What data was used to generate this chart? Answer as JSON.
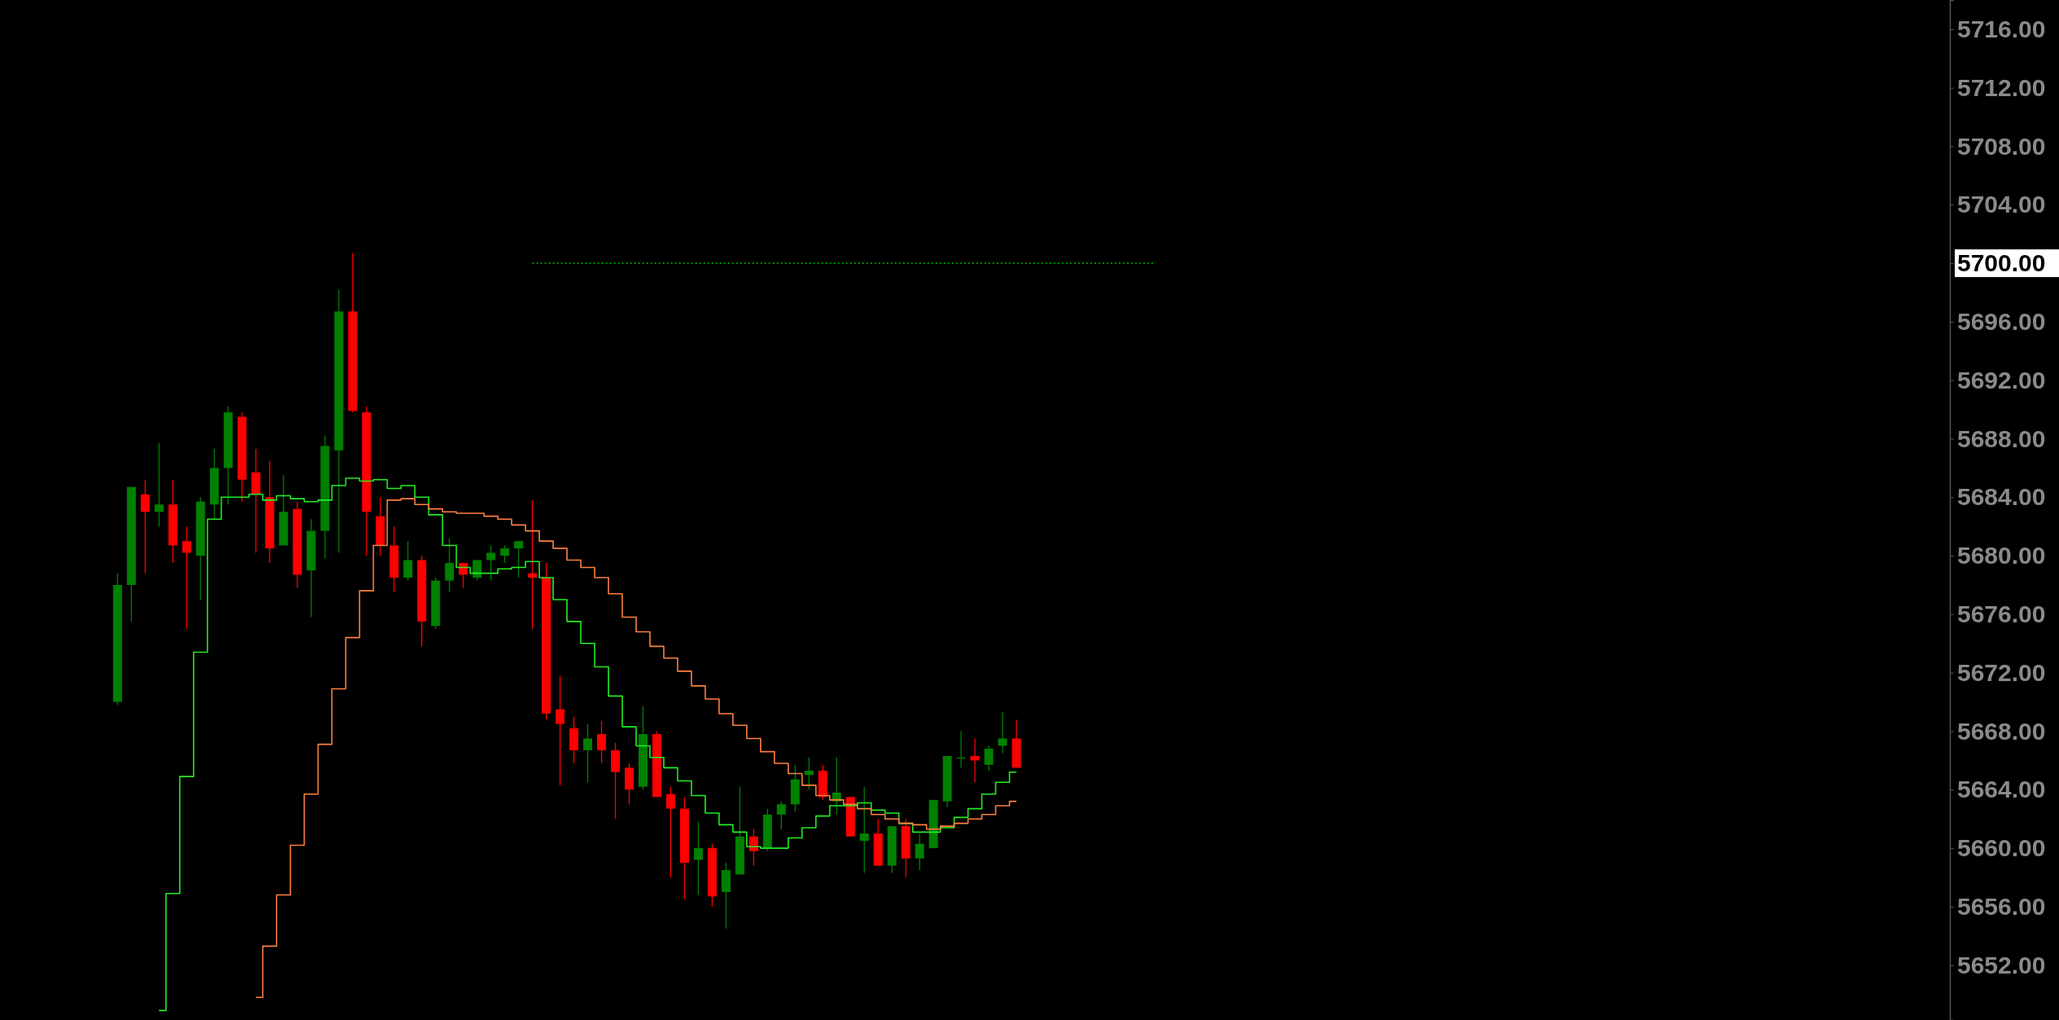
{
  "chart_data": {
    "type": "candlestick",
    "categories": [
      null,
      null,
      null,
      null,
      null,
      null,
      null,
      null,
      null,
      null,
      null,
      null,
      null,
      null,
      null,
      null,
      null,
      null,
      null,
      null,
      null,
      null,
      null,
      null,
      null,
      null,
      null,
      null,
      null,
      null,
      null,
      null,
      null,
      null,
      null,
      null,
      null,
      null,
      null,
      null,
      null,
      null,
      null,
      null,
      null,
      null,
      null,
      null,
      null,
      null,
      null,
      null,
      null,
      null,
      null,
      null,
      null,
      null,
      null,
      null,
      null,
      null,
      null,
      null,
      null,
      null,
      null,
      null,
      null,
      null,
      null,
      null,
      null,
      null,
      null,
      null,
      null,
      null,
      null,
      null,
      null,
      null,
      null,
      null,
      null,
      null,
      null,
      null,
      null,
      null,
      null,
      null,
      null,
      null,
      null,
      null,
      null,
      null,
      null,
      null,
      null,
      null,
      null,
      null,
      null,
      null,
      null,
      null,
      null,
      null,
      null,
      null,
      null,
      null,
      null,
      null,
      null,
      null,
      null,
      null,
      null,
      null,
      null,
      null,
      null,
      null,
      null,
      null,
      null,
      null,
      null,
      null,
      null,
      null,
      null,
      null,
      null,
      null,
      null,
      null,
      null
    ],
    "ohlc": [
      null,
      null,
      null,
      null,
      null,
      null,
      null,
      null,
      [
        5670.0,
        5678.8,
        5669.8,
        5678.0
      ],
      [
        5678.0,
        5684.7,
        5675.5,
        5684.7
      ],
      [
        5684.2,
        5685.2,
        5678.8,
        5683.0
      ],
      [
        5683.0,
        5687.7,
        5682.0,
        5683.5
      ],
      [
        5683.5,
        5685.2,
        5679.5,
        5680.7
      ],
      [
        5681.0,
        5682.0,
        5675.0,
        5680.2
      ],
      [
        5680.0,
        5684.0,
        5677.0,
        5683.7
      ],
      [
        5683.5,
        5687.3,
        5682.5,
        5686.0
      ],
      [
        5686.0,
        5690.2,
        5683.5,
        5689.8
      ],
      [
        5689.5,
        5689.8,
        5683.7,
        5685.2
      ],
      [
        5685.7,
        5687.3,
        5680.2,
        5684.2
      ],
      [
        5684.0,
        5686.5,
        5679.5,
        5680.5
      ],
      [
        5680.7,
        5685.5,
        5680.7,
        5683.0
      ],
      [
        5683.2,
        5683.7,
        5677.8,
        5678.7
      ],
      [
        5679.0,
        5682.5,
        5675.8,
        5681.7
      ],
      [
        5681.7,
        5688.2,
        5679.8,
        5687.5
      ],
      [
        5687.2,
        5698.2,
        5680.2,
        5696.7
      ],
      [
        5696.7,
        5700.7,
        5689.8,
        5689.9
      ],
      [
        5689.8,
        5690.2,
        5680.0,
        5683.0
      ],
      [
        5682.7,
        5684.0,
        5680.0,
        5680.7
      ],
      [
        5680.7,
        5682.0,
        5677.5,
        5678.5
      ],
      [
        5678.5,
        5681.0,
        5678.3,
        5679.7
      ],
      [
        5679.7,
        5680.0,
        5673.8,
        5675.5
      ],
      [
        5675.2,
        5678.5,
        5675.0,
        5678.3
      ],
      [
        5678.3,
        5681.2,
        5677.5,
        5679.5
      ],
      [
        5679.5,
        5679.5,
        5677.8,
        5678.7
      ],
      [
        5678.5,
        5679.7,
        5678.3,
        5679.7
      ],
      [
        5679.7,
        5680.7,
        5678.3,
        5680.2
      ],
      [
        5680.0,
        5680.7,
        5679.5,
        5680.5
      ],
      [
        5680.5,
        5681.0,
        5678.5,
        5681.0
      ],
      [
        5678.8,
        5683.8,
        5675.0,
        5678.5
      ],
      [
        5678.5,
        5679.5,
        5668.8,
        5669.2
      ],
      [
        5669.5,
        5671.8,
        5664.3,
        5668.5
      ],
      [
        5668.2,
        5669.0,
        5665.8,
        5666.7
      ],
      [
        5666.7,
        5668.5,
        5664.5,
        5667.5
      ],
      [
        5667.8,
        5668.7,
        5665.8,
        5666.7
      ],
      [
        5666.7,
        5667.2,
        5662.0,
        5665.2
      ],
      [
        5665.5,
        5665.8,
        5663.0,
        5664.0
      ],
      [
        5664.2,
        5669.7,
        5664.0,
        5667.8
      ],
      [
        5667.8,
        5668.0,
        5663.5,
        5663.5
      ],
      [
        5663.7,
        5664.2,
        5658.0,
        5662.7
      ],
      [
        5662.7,
        5663.5,
        5656.5,
        5659.0
      ],
      [
        5659.2,
        5661.8,
        5656.8,
        5660.0
      ],
      [
        5660.0,
        5660.3,
        5656.0,
        5656.7
      ],
      [
        5657.0,
        5659.0,
        5654.5,
        5658.5
      ],
      [
        5658.2,
        5664.2,
        5658.2,
        5660.8
      ],
      [
        5660.8,
        5661.3,
        5658.8,
        5659.8
      ],
      [
        5660.0,
        5662.7,
        5659.8,
        5662.3
      ],
      [
        5662.3,
        5663.2,
        5661.3,
        5663.0
      ],
      [
        5663.0,
        5665.7,
        5662.5,
        5664.7
      ],
      [
        5665.0,
        5666.2,
        5664.0,
        5665.3
      ],
      [
        5665.3,
        5665.7,
        5663.3,
        5663.5
      ],
      [
        5663.2,
        5666.2,
        5662.3,
        5663.8
      ],
      [
        5663.5,
        5663.5,
        5660.8,
        5660.8
      ],
      [
        5660.5,
        5664.2,
        5658.3,
        5661.0
      ],
      [
        5661.0,
        5662.0,
        5658.8,
        5658.8
      ],
      [
        5658.8,
        5661.5,
        5658.3,
        5661.5
      ],
      [
        5661.5,
        5662.0,
        5658.0,
        5659.3
      ],
      [
        5659.3,
        5661.0,
        5658.5,
        5660.3
      ],
      [
        5660.0,
        5663.3,
        5660.0,
        5663.3
      ],
      [
        5663.2,
        5666.3,
        5662.8,
        5666.3
      ],
      [
        5666.2,
        5668.0,
        5665.5,
        5666.2
      ],
      [
        5666.3,
        5667.5,
        5664.5,
        5666.0
      ],
      [
        5665.7,
        5667.0,
        5665.3,
        5666.8
      ],
      [
        5667.0,
        5669.3,
        5666.5,
        5667.5
      ],
      [
        5667.5,
        5668.8,
        5665.5,
        5665.5
      ],
      null,
      null,
      null,
      null,
      null,
      null,
      null,
      null,
      null,
      null,
      null,
      null,
      null,
      null,
      null,
      null,
      null,
      null,
      null,
      null,
      null,
      null,
      null,
      null,
      null,
      null,
      null,
      null,
      null,
      null,
      null,
      null,
      null,
      null,
      null,
      null,
      null,
      null,
      null,
      null,
      null,
      null,
      null,
      null,
      null,
      null,
      null,
      null,
      null,
      null,
      null,
      null,
      null,
      null,
      null,
      null,
      null,
      null,
      null,
      null,
      null,
      null,
      null,
      null,
      null,
      null,
      null
    ],
    "colors": [
      null,
      null,
      null,
      null,
      null,
      null,
      null,
      null,
      "#008000",
      "#008000",
      "#ff0000",
      "#008000",
      "#ff0000",
      "#ff0000",
      "#008000",
      "#008000",
      "#008000",
      "#ff0000",
      "#ff0000",
      "#ff0000",
      "#008000",
      "#ff0000",
      "#008000",
      "#008000",
      "#008000",
      "#ff0000",
      "#ff0000",
      "#ff0000",
      "#ff0000",
      "#008000",
      "#ff0000",
      "#008000",
      "#008000",
      "#ff0000",
      "#008000",
      "#008000",
      "#008000",
      "#008000",
      "#ff0000",
      "#ff0000",
      "#ff0000",
      "#ff0000",
      "#008000",
      "#ff0000",
      "#ff0000",
      "#ff0000",
      "#008000",
      "#ff0000",
      "#ff0000",
      "#ff0000",
      "#008000",
      "#ff0000",
      "#008000",
      "#008000",
      "#ff0000",
      "#008000",
      "#008000",
      "#008000",
      "#008000",
      "#ff0000",
      "#008000",
      "#ff0000",
      "#008000",
      "#ff0000",
      "#008000",
      "#ff0000",
      "#008000",
      "#008000",
      "#008000",
      "#008000",
      "#ff0000",
      "#008000",
      "#008000",
      "#ff0000",
      null,
      null,
      null,
      null,
      null,
      null,
      null,
      null,
      null,
      null,
      null,
      null,
      null,
      null,
      null,
      null,
      null,
      null,
      null,
      null,
      null,
      null,
      null,
      null,
      null,
      null,
      null,
      null,
      null,
      null,
      null,
      null,
      null,
      null,
      null,
      null,
      null,
      null,
      null,
      null,
      null,
      null,
      null,
      null,
      null,
      null,
      null,
      null,
      null,
      null,
      null,
      null,
      null,
      null,
      null,
      null,
      null,
      null,
      null,
      null,
      null,
      null,
      null,
      null,
      null,
      null,
      null
    ],
    "series": [
      {
        "type": "step",
        "color": "#22ee22",
        "values": [
          null,
          null,
          null,
          null,
          null,
          null,
          null,
          null,
          null,
          null,
          null,
          5648.9,
          5656.9,
          5664.9,
          5673.4,
          5682.5,
          5684.0,
          5684.0,
          5684.2,
          5683.8,
          5684.1,
          5683.9,
          5683.7,
          5683.8,
          5684.8,
          5685.3,
          5685.1,
          5685.2,
          5684.6,
          5684.8,
          5684.0,
          5682.8,
          5680.7,
          5679.2,
          5678.8,
          5678.8,
          5679.1,
          5679.2,
          5679.6,
          5678.5,
          5677.0,
          5675.5,
          5674.0,
          5672.4,
          5670.4,
          5668.3,
          5667.0,
          5666.2,
          5665.5,
          5664.6,
          5663.6,
          5662.4,
          5661.6,
          5661.1,
          5660.1,
          5660.0,
          5660.0,
          5660.7,
          5661.4,
          5662.2,
          5662.9,
          5662.9,
          5663.1,
          5662.6,
          5662.4,
          5661.7,
          5661.1,
          5661.1,
          5661.4,
          5662.1,
          5662.7,
          5663.7,
          5664.5,
          5665.2,
          null,
          null,
          null,
          null,
          null,
          null,
          null,
          null,
          null,
          null,
          null,
          null,
          null,
          null,
          null,
          null,
          null,
          null,
          null,
          null,
          null,
          null,
          null,
          null,
          null,
          null,
          null,
          null,
          null,
          null,
          null,
          null,
          null,
          null,
          null,
          null,
          null,
          null,
          null,
          null,
          null,
          null,
          null,
          null,
          null,
          null,
          null,
          null,
          null,
          null,
          null,
          null,
          null,
          null,
          null,
          null,
          null,
          null,
          null,
          null,
          null,
          null,
          null,
          null,
          null,
          null,
          null
        ]
      },
      {
        "type": "step",
        "color": "#ff8040",
        "values": [
          null,
          null,
          null,
          null,
          null,
          null,
          null,
          null,
          null,
          null,
          null,
          null,
          null,
          null,
          null,
          null,
          null,
          null,
          5649.8,
          5653.3,
          5656.8,
          5660.2,
          5663.7,
          5667.1,
          5670.9,
          5674.4,
          5677.6,
          5680.7,
          5683.8,
          5683.9,
          5683.5,
          5683.2,
          5683.0,
          5682.9,
          5682.9,
          5682.7,
          5682.5,
          5682.1,
          5681.7,
          5681.0,
          5680.5,
          5679.7,
          5679.2,
          5678.5,
          5677.4,
          5675.8,
          5674.8,
          5673.8,
          5673.0,
          5672.1,
          5671.1,
          5670.2,
          5669.2,
          5668.4,
          5667.5,
          5666.6,
          5665.8,
          5665.1,
          5664.3,
          5663.6,
          5663.3,
          5663.0,
          5662.7,
          5662.3,
          5662.0,
          5661.7,
          5661.6,
          5661.3,
          5661.5,
          5661.7,
          5662.0,
          5662.3,
          5662.9,
          5663.2,
          null,
          null,
          null,
          null,
          null,
          null,
          null,
          null,
          null,
          null,
          null,
          null,
          null,
          null,
          null,
          null,
          null,
          null,
          null,
          null,
          null,
          null,
          null,
          null,
          null,
          null,
          null,
          null,
          null,
          null,
          null,
          null,
          null,
          null,
          null,
          null,
          null,
          null,
          null,
          null,
          null,
          null,
          null,
          null,
          null,
          null,
          null,
          null,
          null,
          null,
          null,
          null,
          null,
          null,
          null,
          null,
          null,
          null,
          null,
          null,
          null,
          null,
          null,
          null,
          null,
          null,
          null
        ]
      }
    ],
    "ylim": [
      5648.25,
      5718
    ],
    "yticks": [
      {
        "value": 5652,
        "label": "5652.00"
      },
      {
        "value": 5656,
        "label": "5656.00"
      },
      {
        "value": 5660,
        "label": "5660.00"
      },
      {
        "value": 5664,
        "label": "5664.00"
      },
      {
        "value": 5668,
        "label": "5668.00"
      },
      {
        "value": 5672,
        "label": "5672.00"
      },
      {
        "value": 5676,
        "label": "5676.00"
      },
      {
        "value": 5680,
        "label": "5680.00"
      },
      {
        "value": 5684,
        "label": "5684.00"
      },
      {
        "value": 5688,
        "label": "5688.00"
      },
      {
        "value": 5692,
        "label": "5692.00"
      },
      {
        "value": 5696,
        "label": "5696.00"
      },
      {
        "value": 5700,
        "label": "5700.00"
      },
      {
        "value": 5704,
        "label": "5704.00"
      },
      {
        "value": 5708,
        "label": "5708.00"
      },
      {
        "value": 5712,
        "label": "5712.00"
      },
      {
        "value": 5716,
        "label": "5716.00"
      }
    ],
    "ref_lines": [
      {
        "axis": "y",
        "value": 5700,
        "color": "#00c000",
        "line_style": "dotted"
      }
    ],
    "grid": false
  }
}
